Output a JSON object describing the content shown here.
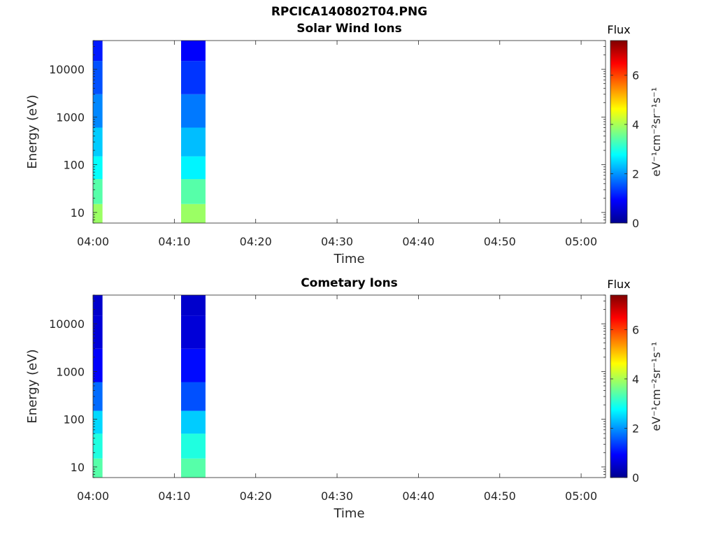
{
  "page_title": "RPCICA140802T04.PNG",
  "colormap": [
    "#00008f",
    "#0000ff",
    "#0080ff",
    "#00ffff",
    "#80ff80",
    "#ffff00",
    "#ff8000",
    "#ff0000",
    "#800000"
  ],
  "chart_data": [
    {
      "type": "heatmap",
      "title": "Solar Wind Ions",
      "xlabel": "Time",
      "ylabel": "Energy (eV)",
      "xlim": [
        "04:00",
        "05:03"
      ],
      "xticks": [
        "04:00",
        "04:10",
        "04:20",
        "04:30",
        "04:40",
        "04:50",
        "05:00"
      ],
      "y_scale": "log",
      "ylim": [
        6,
        40000
      ],
      "yticks": [
        "10",
        "100",
        "1000",
        "10000"
      ],
      "colorbar": {
        "label": "Flux",
        "units": "eV⁻¹cm⁻²sr⁻¹s⁻¹",
        "range": [
          0,
          7.4
        ],
        "ticks": [
          "0",
          "2",
          "4",
          "6"
        ]
      },
      "blocks": [
        {
          "start": "04:00:00",
          "end": "04:01:10",
          "energy_bins": [
            {
              "e_min": 6,
              "e_max": 15,
              "flux": 3.9
            },
            {
              "e_min": 15,
              "e_max": 50,
              "flux": 3.4
            },
            {
              "e_min": 50,
              "e_max": 150,
              "flux": 2.8
            },
            {
              "e_min": 150,
              "e_max": 600,
              "flux": 2.4
            },
            {
              "e_min": 600,
              "e_max": 3000,
              "flux": 1.9
            },
            {
              "e_min": 3000,
              "e_max": 15000,
              "flux": 1.5
            },
            {
              "e_min": 15000,
              "e_max": 40000,
              "flux": 1.1
            }
          ]
        },
        {
          "start": "04:10:50",
          "end": "04:13:50",
          "energy_bins": [
            {
              "e_min": 6,
              "e_max": 15,
              "flux": 3.9
            },
            {
              "e_min": 15,
              "e_max": 50,
              "flux": 3.4
            },
            {
              "e_min": 50,
              "e_max": 150,
              "flux": 2.7
            },
            {
              "e_min": 150,
              "e_max": 600,
              "flux": 2.3
            },
            {
              "e_min": 600,
              "e_max": 3000,
              "flux": 1.8
            },
            {
              "e_min": 3000,
              "e_max": 15000,
              "flux": 1.3
            },
            {
              "e_min": 15000,
              "e_max": 40000,
              "flux": 0.9
            }
          ]
        }
      ]
    },
    {
      "type": "heatmap",
      "title": "Cometary Ions",
      "xlabel": "Time",
      "ylabel": "Energy (eV)",
      "xlim": [
        "04:00",
        "05:03"
      ],
      "xticks": [
        "04:00",
        "04:10",
        "04:20",
        "04:30",
        "04:40",
        "04:50",
        "05:00"
      ],
      "y_scale": "log",
      "ylim": [
        6,
        40000
      ],
      "yticks": [
        "10",
        "100",
        "1000",
        "10000"
      ],
      "colorbar": {
        "label": "Flux",
        "units": "eV⁻¹cm⁻²sr⁻¹s⁻¹",
        "range": [
          0,
          7.4
        ],
        "ticks": [
          "0",
          "2",
          "4",
          "6"
        ]
      },
      "blocks": [
        {
          "start": "04:00:00",
          "end": "04:01:10",
          "energy_bins": [
            {
              "e_min": 6,
              "e_max": 15,
              "flux": 3.4
            },
            {
              "e_min": 15,
              "e_max": 50,
              "flux": 3.0
            },
            {
              "e_min": 50,
              "e_max": 150,
              "flux": 2.5
            },
            {
              "e_min": 150,
              "e_max": 600,
              "flux": 1.7
            },
            {
              "e_min": 600,
              "e_max": 3000,
              "flux": 0.9
            },
            {
              "e_min": 3000,
              "e_max": 15000,
              "flux": 0.6
            },
            {
              "e_min": 15000,
              "e_max": 40000,
              "flux": 0.5
            }
          ]
        },
        {
          "start": "04:10:50",
          "end": "04:13:50",
          "energy_bins": [
            {
              "e_min": 6,
              "e_max": 15,
              "flux": 3.4
            },
            {
              "e_min": 15,
              "e_max": 50,
              "flux": 3.0
            },
            {
              "e_min": 50,
              "e_max": 150,
              "flux": 2.4
            },
            {
              "e_min": 150,
              "e_max": 600,
              "flux": 1.5
            },
            {
              "e_min": 600,
              "e_max": 3000,
              "flux": 1.0
            },
            {
              "e_min": 3000,
              "e_max": 15000,
              "flux": 0.6
            },
            {
              "e_min": 15000,
              "e_max": 40000,
              "flux": 0.5
            }
          ]
        }
      ]
    }
  ]
}
